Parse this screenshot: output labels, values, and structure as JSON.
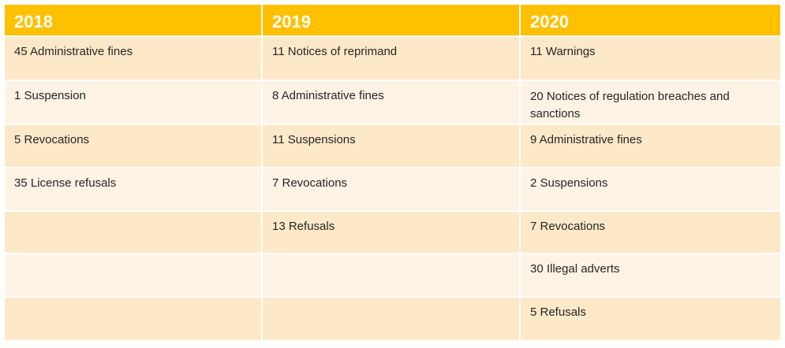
{
  "headers": [
    "2018",
    "2019",
    "2020"
  ],
  "rows": [
    [
      "45 Administrative fines",
      "11 Notices of reprimand",
      "11 Warnings"
    ],
    [
      "1 Suspension",
      "8 Administrative fines",
      "20 Notices of regulation breaches and sanctions"
    ],
    [
      "5 Revocations",
      "11 Suspensions",
      "9 Administrative fines"
    ],
    [
      "35 License refusals",
      "7 Revocations",
      "2 Suspensions"
    ],
    [
      "",
      "13 Refusals",
      "7 Revocations"
    ],
    [
      "",
      "",
      "30 Illegal adverts"
    ],
    [
      "",
      "",
      "5 Refusals"
    ]
  ],
  "colors": {
    "header": "#ffc000",
    "row_odd": "#fde9c8",
    "row_even": "#fff3e5"
  }
}
